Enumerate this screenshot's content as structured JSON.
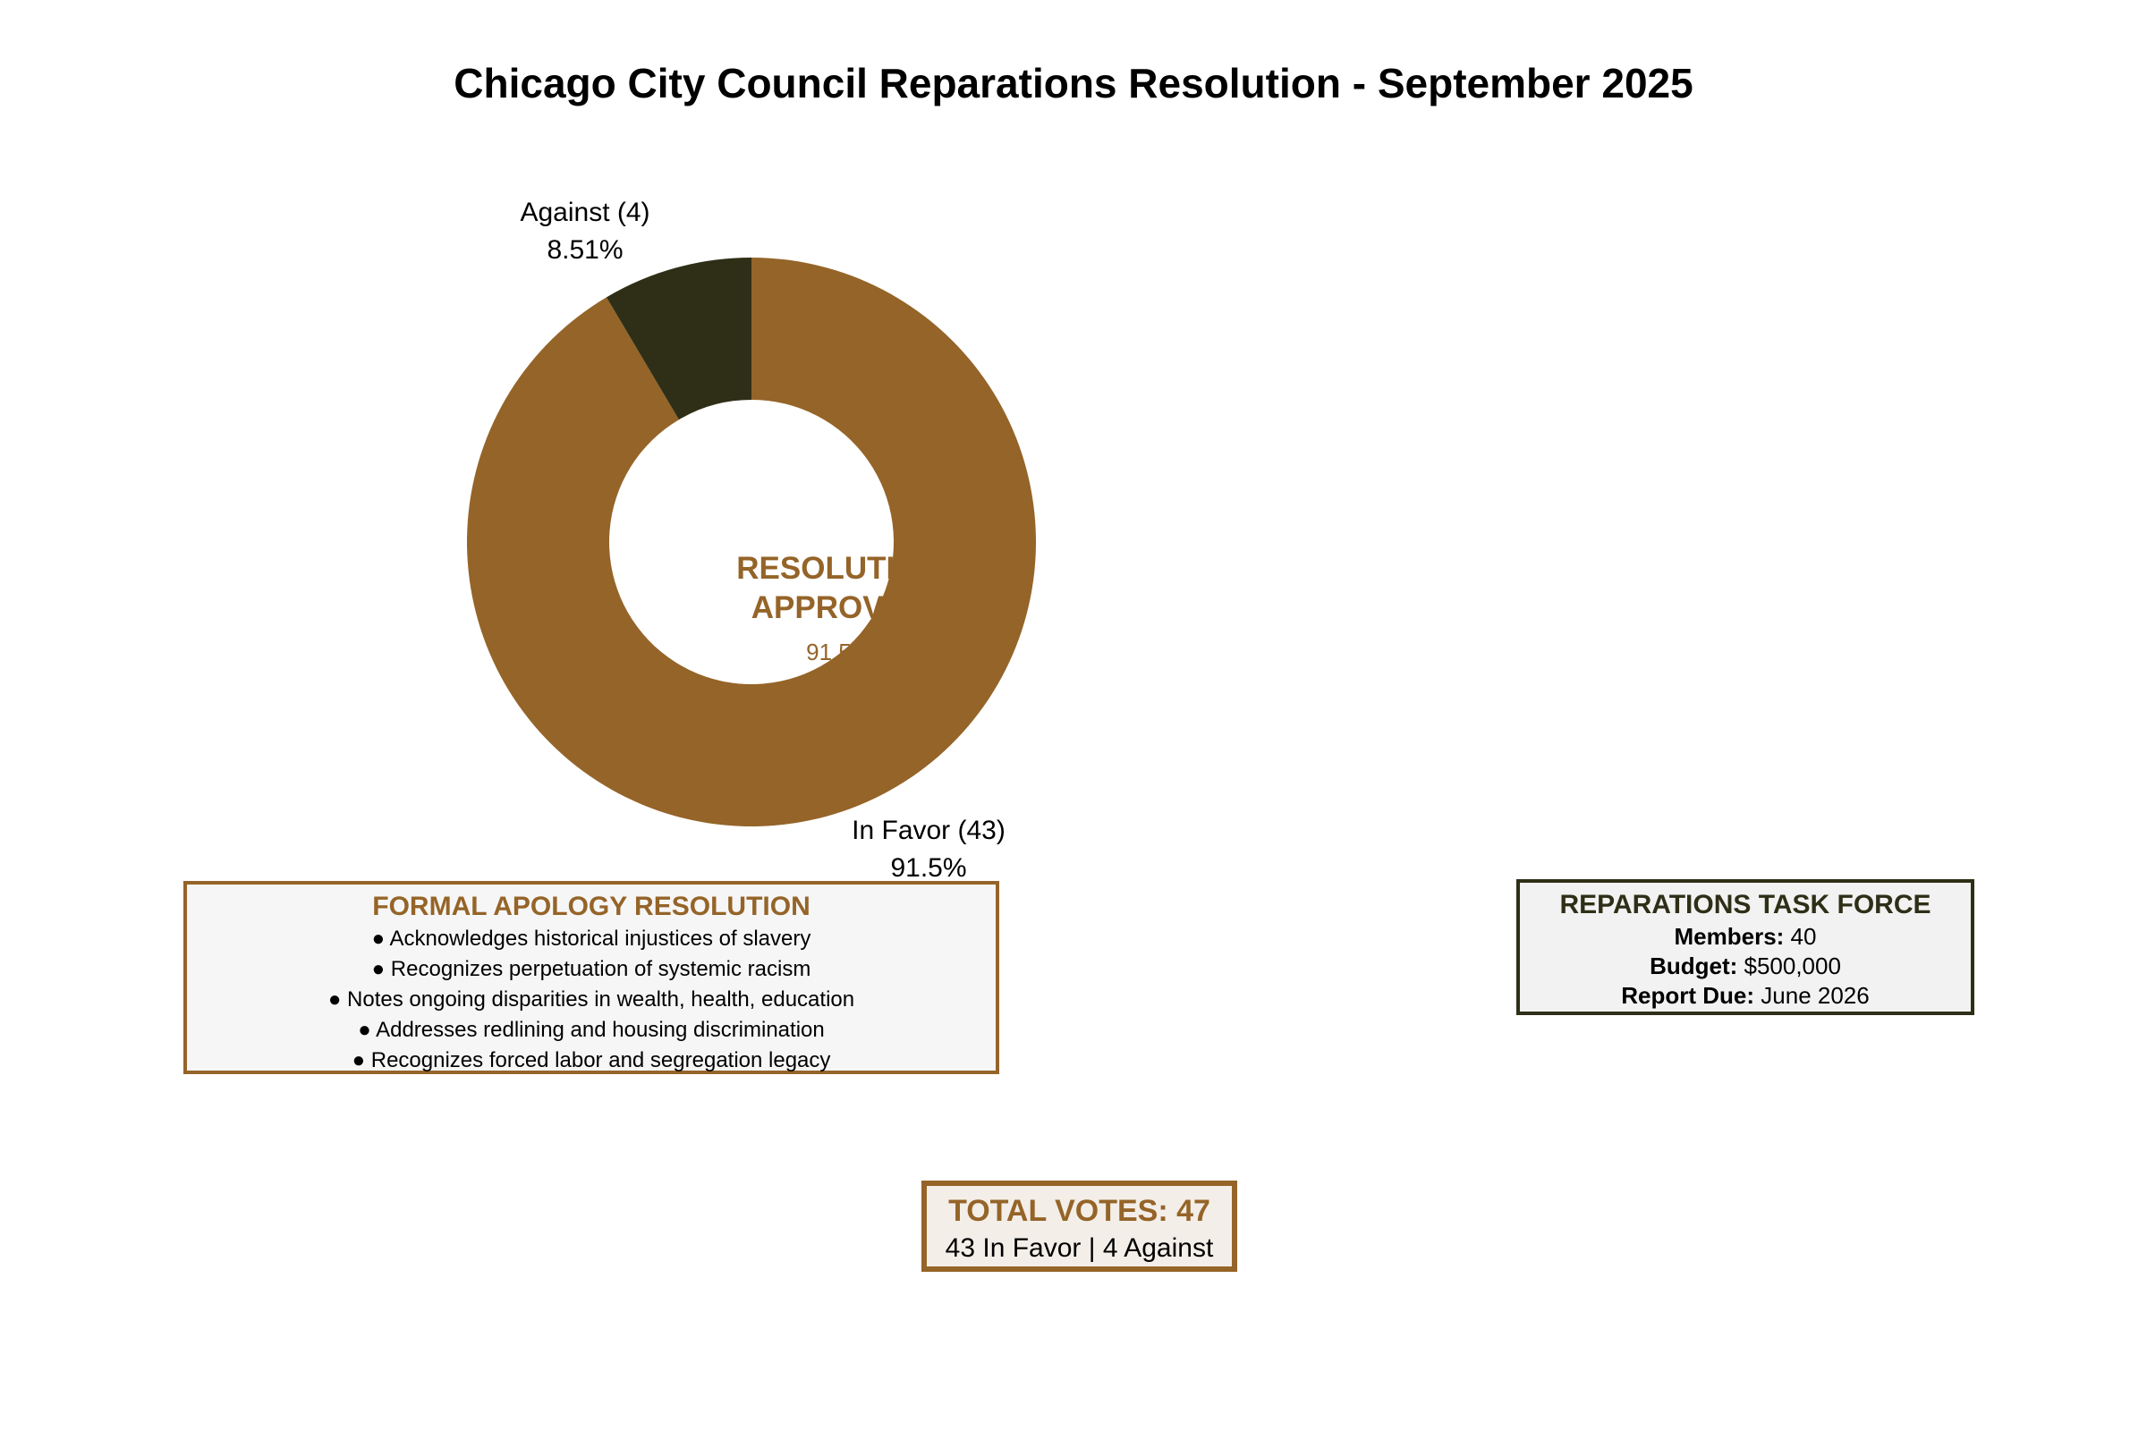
{
  "title": "Chicago City Council Reparations Resolution - September 2025",
  "chart_data": {
    "type": "pie",
    "variant": "donut",
    "start_angle": "top",
    "categories": [
      "In Favor (43)",
      "Against (4)"
    ],
    "values": [
      43,
      4
    ],
    "percent_labels": [
      "91.5%",
      "8.51%"
    ],
    "colors": [
      "#956428",
      "#2f2f18"
    ],
    "center_text": {
      "line1": "RESOLUTION",
      "line2": "APPROVED",
      "pct": "91.5%"
    },
    "legend": "none"
  },
  "apology_box": {
    "title": "FORMAL APOLOGY RESOLUTION",
    "items": [
      "● Acknowledges historical injustices of slavery",
      "● Recognizes perpetuation of systemic racism",
      "● Notes ongoing disparities in wealth, health, education",
      "● Addresses redlining and housing discrimination",
      "● Recognizes forced labor and segregation legacy"
    ]
  },
  "task_force": {
    "title": "REPARATIONS TASK FORCE",
    "members_label": "Members:",
    "members_value": " 40",
    "budget_label": "Budget:",
    "budget_value": " $500,000",
    "due_label": "Report Due:",
    "due_value": " June 2026"
  },
  "total_box": {
    "title": "TOTAL VOTES: 47",
    "subtitle": "43 In Favor | 4 Against"
  }
}
